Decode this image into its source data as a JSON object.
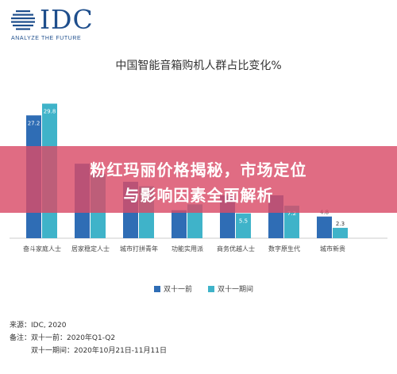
{
  "logo": {
    "text": "IDC",
    "tagline": "ANALYZE THE FUTURE",
    "globe_icon": "globe-icon",
    "color": "#1e4e8c"
  },
  "banner": {
    "line1": "粉红玛丽价格揭秘，市场定位",
    "line2": "与影响因素全面解析",
    "color": "#d94c68"
  },
  "notes": {
    "source": "来源：IDC, 2020",
    "remark_label": "备注：",
    "remark_1": "双十一前：2020年Q1-Q2",
    "remark_2": "双十一期间：2020年10月21日-11月11日"
  },
  "chart_data": {
    "type": "bar",
    "title": "中国智能音箱购机人群占比变化%",
    "categories": [
      "奋斗家庭人士",
      "居家稳定人士",
      "城市打拼青年",
      "功能实用派",
      "商务优越人士",
      "数字原生代",
      "城市新贵"
    ],
    "series": [
      {
        "name": "双十一前",
        "color": "#2f6db5",
        "values": [
          27.2,
          null,
          null,
          null,
          null,
          null,
          4.8
        ]
      },
      {
        "name": "双十一期间",
        "color": "#3fb3c9",
        "values": [
          29.8,
          null,
          null,
          null,
          5.5,
          7.2,
          2.3
        ]
      }
    ],
    "estimated_values": [
      [
        27.2,
        16.5,
        12.5,
        6.2,
        9.5,
        9.5,
        4.8
      ],
      [
        29.8,
        14.2,
        11.5,
        7.5,
        5.5,
        7.2,
        2.3
      ]
    ],
    "ylim": [
      0,
      32
    ],
    "legend_position": "bottom",
    "grid": false
  }
}
